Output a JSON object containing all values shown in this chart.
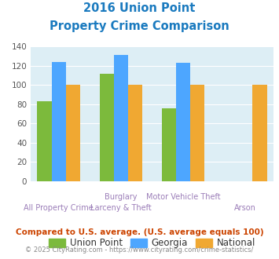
{
  "title_line1": "2016 Union Point",
  "title_line2": "Property Crime Comparison",
  "union_point": [
    83,
    112,
    76,
    null
  ],
  "georgia": [
    124,
    131,
    123,
    null
  ],
  "national": [
    100,
    100,
    100,
    100
  ],
  "color_union": "#7cba3c",
  "color_georgia": "#4da6ff",
  "color_national": "#f0a832",
  "legend_labels": [
    "Union Point",
    "Georgia",
    "National"
  ],
  "ylabel_max": 140,
  "yticks": [
    0,
    20,
    40,
    60,
    80,
    100,
    120,
    140
  ],
  "bg_color": "#ddeef5",
  "title_color": "#1a7abf",
  "label_color": "#9b7db8",
  "footer_text": "Compared to U.S. average. (U.S. average equals 100)",
  "credit_text": "© 2025 CityRating.com - https://www.cityrating.com/crime-statistics/",
  "footer_color": "#cc4400",
  "credit_color": "#888888"
}
